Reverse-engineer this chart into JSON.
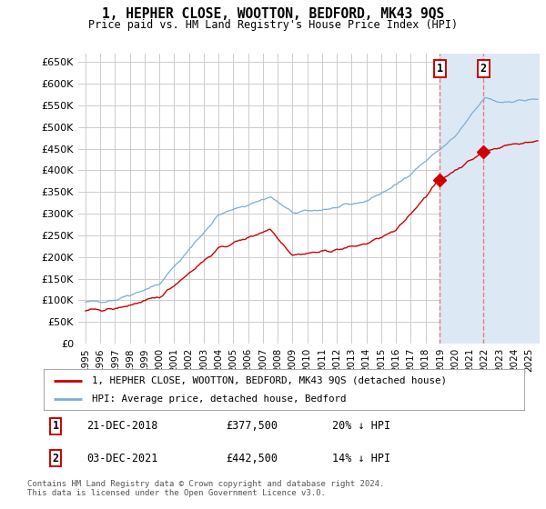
{
  "title": "1, HEPHER CLOSE, WOOTTON, BEDFORD, MK43 9QS",
  "subtitle": "Price paid vs. HM Land Registry's House Price Index (HPI)",
  "ylabel_ticks": [
    "£0",
    "£50K",
    "£100K",
    "£150K",
    "£200K",
    "£250K",
    "£300K",
    "£350K",
    "£400K",
    "£450K",
    "£500K",
    "£550K",
    "£600K",
    "£650K"
  ],
  "ytick_values": [
    0,
    50000,
    100000,
    150000,
    200000,
    250000,
    300000,
    350000,
    400000,
    450000,
    500000,
    550000,
    600000,
    650000
  ],
  "ylim": [
    0,
    670000
  ],
  "xlim_start": 1994.5,
  "xlim_end": 2025.7,
  "sale1_date": 2018.97,
  "sale1_price": 377500,
  "sale2_date": 2021.92,
  "sale2_price": 442500,
  "line_color_property": "#cc0000",
  "line_color_hpi": "#7aaed4",
  "legend_property": "1, HEPHER CLOSE, WOOTTON, BEDFORD, MK43 9QS (detached house)",
  "legend_hpi": "HPI: Average price, detached house, Bedford",
  "footer": "Contains HM Land Registry data © Crown copyright and database right 2024.\nThis data is licensed under the Open Government Licence v3.0.",
  "background_color": "#ffffff",
  "plot_bg": "#ffffff",
  "grid_color": "#cccccc",
  "span_color": "#dde8f5",
  "dashed_color": "#e08080"
}
